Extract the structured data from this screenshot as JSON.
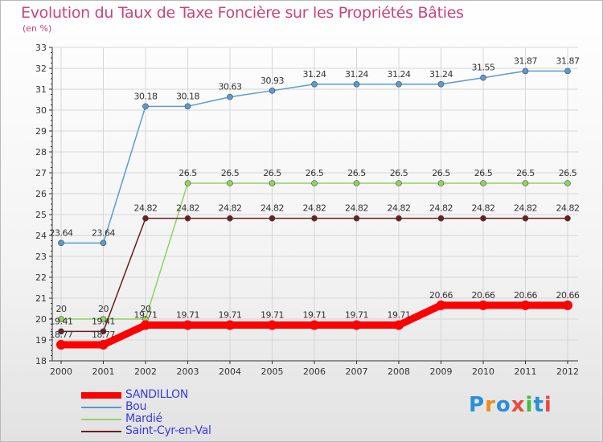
{
  "chart_data": {
    "type": "line",
    "title": "Evolution du Taux de Taxe Foncière sur les Propriétés Bâties",
    "ylabel": "(en %)",
    "ylim": [
      18,
      33
    ],
    "yticks": [
      "18",
      "19",
      "20",
      "21",
      "22",
      "23",
      "24",
      "25",
      "26",
      "27",
      "28",
      "29",
      "30",
      "31",
      "32",
      "33"
    ],
    "categories": [
      "2000",
      "2001",
      "2002",
      "2003",
      "2004",
      "2005",
      "2006",
      "2007",
      "2008",
      "2009",
      "2010",
      "2011",
      "2012"
    ],
    "series": [
      {
        "name": "SANDILLON",
        "color": "#ff0000",
        "values": [
          18.77,
          18.77,
          19.71,
          19.71,
          19.71,
          19.71,
          19.71,
          19.71,
          19.71,
          20.66,
          20.66,
          20.66,
          20.66
        ],
        "labels": [
          "18.77",
          "18.77",
          "19.71",
          "19.71",
          "19.71",
          "19.71",
          "19.71",
          "19.71",
          "19.71",
          "20.66",
          "20.66",
          "20.66",
          "20.66"
        ]
      },
      {
        "name": "Bou",
        "color": "#5c9ad3",
        "values": [
          23.64,
          23.64,
          30.18,
          30.18,
          30.63,
          30.93,
          31.24,
          31.24,
          31.24,
          31.24,
          31.55,
          31.87,
          31.87
        ],
        "labels": [
          "23.64",
          "23.64",
          "30.18",
          "30.18",
          "30.63",
          "30.93",
          "31.24",
          "31.24",
          "31.24",
          "31.24",
          "31.55",
          "31.87",
          "31.87"
        ]
      },
      {
        "name": "Mardié",
        "color": "#8fd45f",
        "values": [
          20,
          20,
          20,
          26.5,
          26.5,
          26.5,
          26.5,
          26.5,
          26.5,
          26.5,
          26.5,
          26.5,
          26.5
        ],
        "labels": [
          "20",
          "20",
          "20",
          "26.5",
          "26.5",
          "26.5",
          "26.5",
          "26.5",
          "26.5",
          "26.5",
          "26.5",
          "26.5",
          "26.5"
        ]
      },
      {
        "name": "Saint-Cyr-en-Val",
        "color": "#6b1f1f",
        "values": [
          19.41,
          19.41,
          24.82,
          24.82,
          24.82,
          24.82,
          24.82,
          24.82,
          24.82,
          24.82,
          24.82,
          24.82,
          24.82
        ],
        "labels": [
          "19.41",
          "19.41",
          "24.82",
          "24.82",
          "24.82",
          "24.82",
          "24.82",
          "24.82",
          "24.82",
          "24.82",
          "24.82",
          "24.82",
          "24.82"
        ]
      }
    ]
  },
  "legend": {
    "items": [
      "SANDILLON",
      "Bou",
      "Mardié",
      "Saint-Cyr-en-Val"
    ]
  },
  "logo": {
    "text": "Proxiti",
    "colors": [
      "#2a8fd6",
      "#f08a1c",
      "#2a8fd6",
      "#e84a3c",
      "#3cbf3c",
      "#2a8fd6",
      "#e84a3c"
    ]
  }
}
